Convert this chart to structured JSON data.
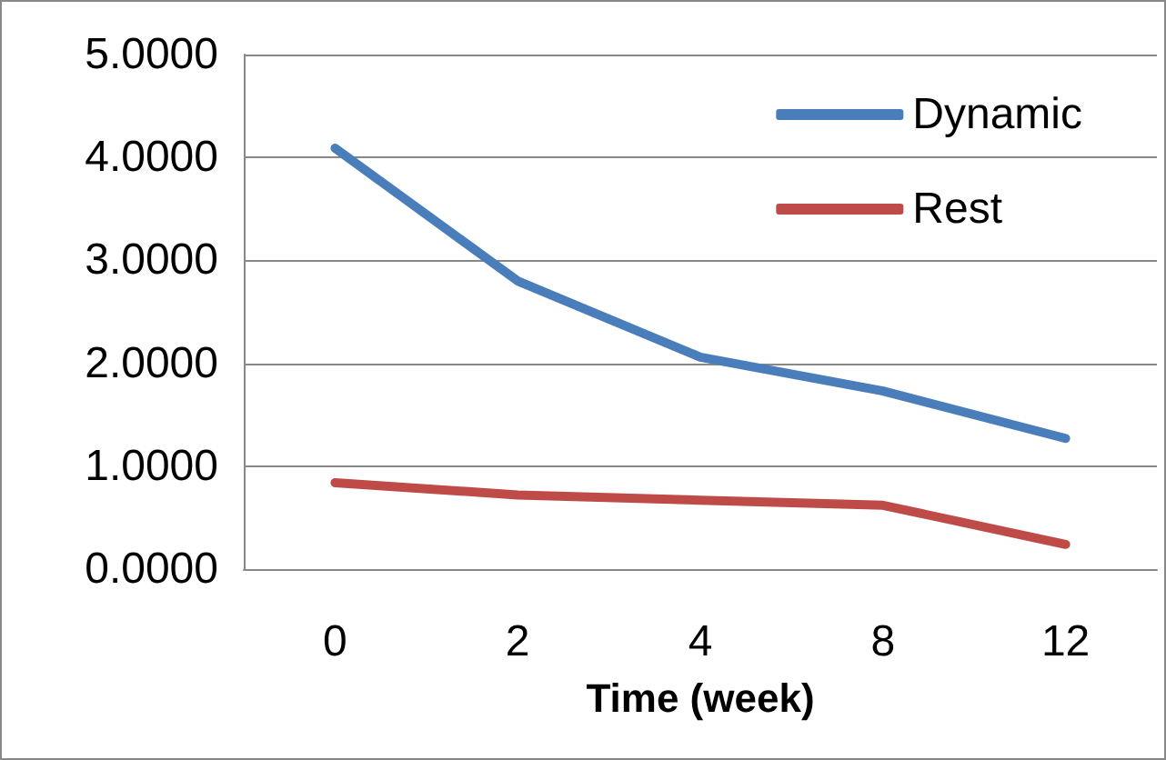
{
  "chart_data": {
    "type": "line",
    "xlabel": "Time (week)",
    "categories": [
      "0",
      "2",
      "4",
      "8",
      "12"
    ],
    "series": [
      {
        "name": "Dynamic",
        "color": "#4a7ebb",
        "values": [
          4.09,
          2.8,
          2.06,
          1.73,
          1.27
        ]
      },
      {
        "name": "Rest",
        "color": "#be4b48",
        "values": [
          0.84,
          0.72,
          0.67,
          0.62,
          0.24
        ]
      }
    ],
    "ylim": [
      0,
      5
    ],
    "yticks": [
      {
        "value": 0,
        "label": "0.0000"
      },
      {
        "value": 1,
        "label": "1.0000"
      },
      {
        "value": 2,
        "label": "2.0000"
      },
      {
        "value": 3,
        "label": "3.0000"
      },
      {
        "value": 4,
        "label": "4.0000"
      },
      {
        "value": 5,
        "label": "5.0000"
      }
    ],
    "grid": "y",
    "legend": "top right",
    "marker": "none",
    "line_style": "solid"
  }
}
